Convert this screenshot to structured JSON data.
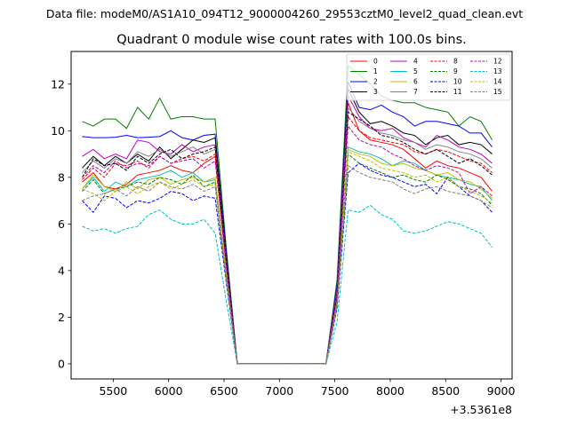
{
  "header": {
    "data_file": "Data file: modeM0/AS1A10_094T12_9000004260_29553cztM0_level2_quad_clean.evt"
  },
  "chart_data": {
    "type": "line",
    "title": "Quadrant 0 module wise count rates with 100.0s bins.",
    "xlabel": "",
    "ylabel": "",
    "offset_label": "+3.5361e8",
    "xlim": [
      5120,
      9100
    ],
    "ylim": [
      -0.65,
      13.4
    ],
    "xticks": [
      5500,
      6000,
      6500,
      7000,
      7500,
      8000,
      8500,
      9000
    ],
    "yticks": [
      0,
      2,
      4,
      6,
      8,
      10,
      12
    ],
    "grid": false,
    "legend_position": "top-right",
    "legend_columns": 4,
    "x": [
      5220,
      5320,
      5420,
      5520,
      5620,
      5720,
      5820,
      5920,
      6020,
      6120,
      6220,
      6320,
      6420,
      6520,
      6620,
      6720,
      6820,
      6920,
      7020,
      7120,
      7220,
      7320,
      7420,
      7520,
      7620,
      7720,
      7820,
      7920,
      8020,
      8120,
      8220,
      8320,
      8420,
      8520,
      8620,
      8720,
      8820,
      8920
    ],
    "series": [
      {
        "name": "0",
        "color": "#ff0000",
        "dash": "solid",
        "values": [
          7.8,
          8.2,
          7.6,
          7.5,
          7.7,
          8.1,
          8.2,
          8.3,
          8.5,
          8.3,
          8.2,
          8.6,
          8.9,
          4.2,
          0,
          0,
          0,
          0,
          0,
          0,
          0,
          0,
          0,
          2.8,
          11.2,
          10.0,
          9.6,
          9.5,
          9.4,
          9.2,
          8.8,
          8.4,
          8.7,
          8.5,
          8.4,
          8.2,
          8.0,
          7.4
        ]
      },
      {
        "name": "1",
        "color": "#008000",
        "dash": "solid",
        "values": [
          10.4,
          10.2,
          10.5,
          10.5,
          10.1,
          11.0,
          10.5,
          11.4,
          10.5,
          10.6,
          10.6,
          10.5,
          10.5,
          5.0,
          0,
          0,
          0,
          0,
          0,
          0,
          0,
          0,
          0,
          3.6,
          12.8,
          12.4,
          12.0,
          11.5,
          11.3,
          11.2,
          11.2,
          11.0,
          10.9,
          10.8,
          10.2,
          10.6,
          10.4,
          9.6
        ]
      },
      {
        "name": "2",
        "color": "#0000ff",
        "dash": "solid",
        "values": [
          9.75,
          9.7,
          9.7,
          9.72,
          9.8,
          9.7,
          9.72,
          9.75,
          10.0,
          9.7,
          9.6,
          9.8,
          9.85,
          4.8,
          0,
          0,
          0,
          0,
          0,
          0,
          0,
          0,
          0,
          3.4,
          12.1,
          11.0,
          10.9,
          11.1,
          10.8,
          10.6,
          10.2,
          10.4,
          10.4,
          10.3,
          10.2,
          9.9,
          9.9,
          9.3
        ]
      },
      {
        "name": "3",
        "color": "#000000",
        "dash": "solid",
        "values": [
          8.4,
          8.9,
          8.5,
          8.9,
          8.6,
          9.0,
          8.7,
          9.3,
          8.8,
          9.2,
          9.6,
          9.5,
          9.7,
          4.6,
          0,
          0,
          0,
          0,
          0,
          0,
          0,
          0,
          0,
          3.2,
          11.8,
          10.8,
          10.3,
          10.4,
          10.2,
          9.9,
          9.8,
          9.4,
          9.7,
          9.8,
          9.4,
          9.5,
          9.4,
          9.0
        ]
      },
      {
        "name": "4",
        "color": "#bf00bf",
        "dash": "solid",
        "values": [
          8.9,
          9.2,
          8.8,
          9.0,
          8.8,
          9.6,
          9.5,
          9.1,
          9.0,
          9.4,
          9.1,
          9.3,
          9.4,
          4.5,
          0,
          0,
          0,
          0,
          0,
          0,
          0,
          0,
          0,
          3.2,
          11.5,
          10.6,
          10.1,
          10.0,
          10.1,
          9.7,
          9.5,
          9.3,
          9.8,
          9.6,
          9.3,
          9.2,
          9.0,
          8.6
        ]
      },
      {
        "name": "5",
        "color": "#00bfbf",
        "dash": "solid",
        "values": [
          7.5,
          8.0,
          7.4,
          7.8,
          7.6,
          7.9,
          8.0,
          8.1,
          8.3,
          8.0,
          8.2,
          7.8,
          7.9,
          3.8,
          0,
          0,
          0,
          0,
          0,
          0,
          0,
          0,
          0,
          2.7,
          9.3,
          9.1,
          9.0,
          8.8,
          8.5,
          8.7,
          8.6,
          8.3,
          8.1,
          8.0,
          7.9,
          7.7,
          7.6,
          7.0
        ]
      },
      {
        "name": "6",
        "color": "#bfbf00",
        "dash": "solid",
        "values": [
          7.5,
          8.1,
          7.6,
          7.4,
          7.8,
          7.5,
          7.9,
          8.0,
          7.7,
          7.9,
          8.0,
          7.8,
          8.0,
          3.8,
          0,
          0,
          0,
          0,
          0,
          0,
          0,
          0,
          0,
          2.6,
          9.2,
          9.0,
          8.9,
          8.6,
          8.5,
          8.6,
          8.4,
          8.3,
          8.1,
          8.2,
          7.9,
          7.8,
          7.5,
          7.1
        ]
      },
      {
        "name": "7",
        "color": "#808080",
        "dash": "solid",
        "values": [
          8.2,
          8.7,
          8.4,
          8.8,
          8.6,
          9.1,
          8.9,
          9.2,
          8.9,
          9.1,
          9.3,
          9.0,
          9.2,
          4.4,
          0,
          0,
          0,
          0,
          0,
          0,
          0,
          0,
          0,
          3.1,
          11.0,
          10.4,
          10.1,
          9.9,
          9.8,
          9.6,
          9.5,
          9.2,
          9.4,
          9.3,
          9.1,
          9.0,
          8.8,
          8.4
        ]
      },
      {
        "name": "8",
        "color": "#ff0000",
        "dash": "dashed",
        "values": [
          7.9,
          8.4,
          8.0,
          8.6,
          8.5,
          8.7,
          8.4,
          8.9,
          8.6,
          8.8,
          8.9,
          8.7,
          9.0,
          4.3,
          0,
          0,
          0,
          0,
          0,
          0,
          0,
          0,
          0,
          3.0,
          10.6,
          10.0,
          9.7,
          9.6,
          9.5,
          9.4,
          9.1,
          9.0,
          9.2,
          9.1,
          8.9,
          8.7,
          8.6,
          8.2
        ]
      },
      {
        "name": "9",
        "color": "#008000",
        "dash": "dashed",
        "values": [
          7.4,
          7.9,
          7.3,
          7.5,
          7.6,
          7.8,
          7.7,
          8.0,
          7.9,
          7.7,
          8.1,
          7.6,
          7.8,
          3.7,
          0,
          0,
          0,
          0,
          0,
          0,
          0,
          0,
          0,
          2.6,
          9.0,
          8.6,
          8.4,
          8.2,
          8.0,
          8.1,
          7.9,
          7.8,
          8.1,
          7.9,
          7.6,
          7.5,
          7.3,
          6.8
        ]
      },
      {
        "name": "10",
        "color": "#0000ff",
        "dash": "dashed",
        "values": [
          7.0,
          6.5,
          7.2,
          7.1,
          6.7,
          7.0,
          6.9,
          7.1,
          7.4,
          7.3,
          7.0,
          7.2,
          7.1,
          3.5,
          0,
          0,
          0,
          0,
          0,
          0,
          0,
          0,
          0,
          2.4,
          8.2,
          8.6,
          8.3,
          8.1,
          8.0,
          7.8,
          7.6,
          7.7,
          7.3,
          8.0,
          7.6,
          7.2,
          7.0,
          6.5
        ]
      },
      {
        "name": "11",
        "color": "#000000",
        "dash": "dashed",
        "values": [
          8.0,
          8.8,
          8.5,
          8.6,
          8.3,
          8.9,
          8.6,
          9.0,
          9.2,
          8.8,
          9.0,
          9.1,
          9.3,
          4.4,
          0,
          0,
          0,
          0,
          0,
          0,
          0,
          0,
          0,
          3.0,
          10.8,
          10.5,
          10.2,
          9.8,
          9.7,
          9.5,
          9.2,
          9.0,
          9.2,
          8.9,
          8.6,
          8.8,
          8.5,
          8.1
        ]
      },
      {
        "name": "12",
        "color": "#bf00bf",
        "dash": "dashed",
        "values": [
          8.0,
          8.5,
          8.2,
          8.7,
          8.4,
          8.6,
          8.5,
          8.9,
          8.6,
          8.7,
          8.8,
          8.4,
          8.7,
          4.2,
          0,
          0,
          0,
          0,
          0,
          0,
          0,
          0,
          0,
          2.9,
          10.2,
          9.6,
          9.4,
          9.3,
          9.0,
          8.8,
          8.5,
          8.3,
          8.5,
          8.4,
          8.2,
          7.3,
          7.6,
          7.2
        ]
      },
      {
        "name": "13",
        "color": "#00bfbf",
        "dash": "dashed",
        "values": [
          5.9,
          5.7,
          5.8,
          5.6,
          5.8,
          5.9,
          6.4,
          6.6,
          6.2,
          6.0,
          6.0,
          6.2,
          5.6,
          2.7,
          0,
          0,
          0,
          0,
          0,
          0,
          0,
          0,
          0,
          1.8,
          6.6,
          6.5,
          6.8,
          6.4,
          6.2,
          5.7,
          5.6,
          5.7,
          5.9,
          6.1,
          6.0,
          5.8,
          5.6,
          5.0
        ]
      },
      {
        "name": "14",
        "color": "#bfbf00",
        "dash": "dashed",
        "values": [
          7.5,
          7.3,
          7.0,
          7.4,
          7.6,
          7.3,
          7.6,
          7.8,
          7.5,
          7.7,
          7.9,
          7.6,
          7.7,
          3.7,
          0,
          0,
          0,
          0,
          0,
          0,
          0,
          0,
          0,
          2.6,
          9.1,
          8.9,
          8.7,
          8.4,
          8.3,
          8.2,
          8.0,
          8.1,
          7.8,
          8.0,
          7.6,
          7.4,
          7.2,
          6.9
        ]
      },
      {
        "name": "15",
        "color": "#808080",
        "dash": "dashed",
        "values": [
          7.0,
          7.2,
          7.3,
          7.5,
          7.2,
          7.6,
          7.4,
          7.8,
          7.6,
          7.5,
          7.7,
          7.4,
          7.6,
          3.6,
          0,
          0,
          0,
          0,
          0,
          0,
          0,
          0,
          0,
          2.5,
          8.5,
          8.2,
          8.0,
          7.9,
          7.8,
          7.5,
          7.3,
          7.5,
          7.6,
          7.4,
          7.3,
          7.2,
          7.0,
          6.7
        ]
      }
    ]
  }
}
